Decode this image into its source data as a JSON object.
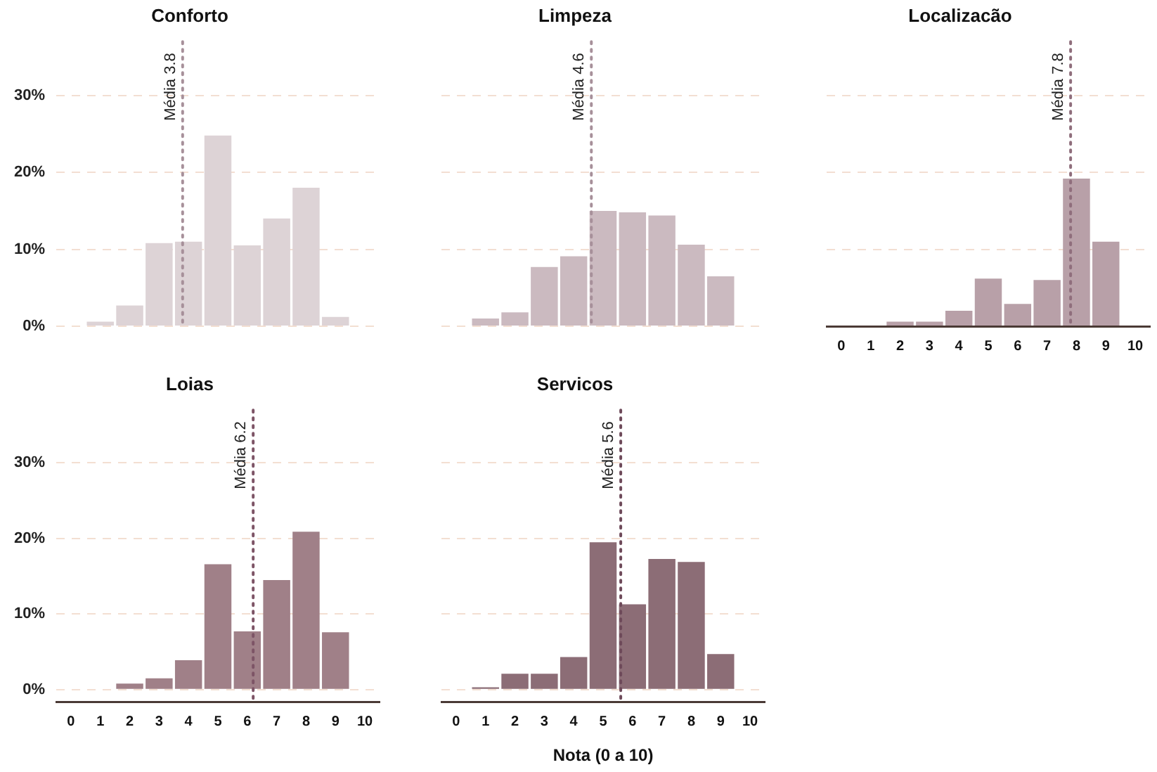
{
  "chart_data": [
    {
      "type": "bar",
      "title": "Conforto",
      "x": [
        0,
        1,
        2,
        3,
        4,
        5,
        6,
        7,
        8,
        9,
        10
      ],
      "values": [
        0,
        0.6,
        2.7,
        10.8,
        11,
        24.8,
        10.5,
        14,
        18,
        1.2,
        0
      ],
      "color": "#ddd3d6",
      "xlim": [
        -0.5,
        10.5
      ],
      "xticks": [
        0,
        1,
        2,
        3,
        4,
        5,
        6,
        7,
        8,
        9,
        10
      ],
      "ylim": [
        0,
        37
      ],
      "yticks": [
        {
          "value": 0,
          "label": "0%"
        },
        {
          "value": 10,
          "label": "10%"
        },
        {
          "value": 20,
          "label": "20%"
        },
        {
          "value": 30,
          "label": "30%"
        }
      ],
      "grid": "y",
      "tick_labels": "y",
      "ref_lines": [
        {
          "axis": "x",
          "value": 3.8,
          "label": "Média 3.8",
          "color": "#a7909a",
          "line_style": "dotted"
        }
      ]
    },
    {
      "type": "bar",
      "title": "Limpeza",
      "x": [
        0,
        1,
        2,
        3,
        4,
        5,
        6,
        7,
        8,
        9,
        10
      ],
      "values": [
        0,
        1,
        1.8,
        7.7,
        9.1,
        15,
        14.8,
        14.4,
        10.6,
        6.5,
        0
      ],
      "color": "#cbbac0",
      "xlim": [
        -0.5,
        10.5
      ],
      "xticks": [
        0,
        1,
        2,
        3,
        4,
        5,
        6,
        7,
        8,
        9,
        10
      ],
      "ylim": [
        0,
        37
      ],
      "yticks": [
        0,
        10,
        20,
        30
      ],
      "grid": "y",
      "tick_labels": false,
      "ref_lines": [
        {
          "axis": "x",
          "value": 4.6,
          "label": "Média 4.6",
          "color": "#a7909a",
          "line_style": "dotted"
        }
      ]
    },
    {
      "type": "bar",
      "title": "Localizacão",
      "x": [
        0,
        1,
        2,
        3,
        4,
        5,
        6,
        7,
        8,
        9,
        10
      ],
      "values": [
        0,
        0,
        0.6,
        0.6,
        2,
        6.2,
        2.9,
        6,
        19.2,
        11,
        0
      ],
      "color": "#b8a0a8",
      "xlim": [
        -0.5,
        10.5
      ],
      "xticks": [
        0,
        1,
        2,
        3,
        4,
        5,
        6,
        7,
        8,
        9,
        10
      ],
      "ylim": [
        0,
        37
      ],
      "yticks": [
        0,
        10,
        20,
        30
      ],
      "grid": "y",
      "tick_labels": "x",
      "ref_lines": [
        {
          "axis": "x",
          "value": 7.8,
          "label": "Média 7.8",
          "color": "#8f6e7c",
          "line_style": "dotted"
        }
      ]
    },
    {
      "type": "bar",
      "title": "Loias",
      "x": [
        0,
        1,
        2,
        3,
        4,
        5,
        6,
        7,
        8,
        9,
        10
      ],
      "values": [
        0,
        0,
        0.8,
        1.5,
        3.9,
        16.6,
        7.7,
        14.5,
        20.9,
        7.6,
        0
      ],
      "color": "#a08088",
      "xlim": [
        -0.5,
        10.5
      ],
      "xticks": [
        0,
        1,
        2,
        3,
        4,
        5,
        6,
        7,
        8,
        9,
        10
      ],
      "ylim": [
        -1.6,
        37
      ],
      "yticks": [
        {
          "value": 0,
          "label": "0%"
        },
        {
          "value": 10,
          "label": "10%"
        },
        {
          "value": 20,
          "label": "20%"
        },
        {
          "value": 30,
          "label": "30%"
        }
      ],
      "grid": "y",
      "ref_lines": [
        {
          "axis": "x",
          "value": 6.2,
          "label": "Média 6.2",
          "color": "#7d5466",
          "line_style": "dotted"
        }
      ]
    },
    {
      "type": "bar",
      "title": "Servicos",
      "xlabel": "Nota (0 a 10)",
      "x": [
        0,
        1,
        2,
        3,
        4,
        5,
        6,
        7,
        8,
        9,
        10
      ],
      "values": [
        0,
        0.3,
        2.1,
        2.1,
        4.3,
        19.5,
        11.3,
        17.3,
        16.9,
        4.7,
        0
      ],
      "color": "#8c6d76",
      "xlim": [
        -0.5,
        10.5
      ],
      "xticks": [
        0,
        1,
        2,
        3,
        4,
        5,
        6,
        7,
        8,
        9,
        10
      ],
      "ylim": [
        -1.6,
        37
      ],
      "yticks": [
        0,
        10,
        20,
        30
      ],
      "grid": "y",
      "tick_labels": "x",
      "ref_lines": [
        {
          "axis": "x",
          "value": 5.6,
          "label": "Média 5.6",
          "color": "#6e4a5a",
          "line_style": "dotted"
        }
      ]
    }
  ]
}
